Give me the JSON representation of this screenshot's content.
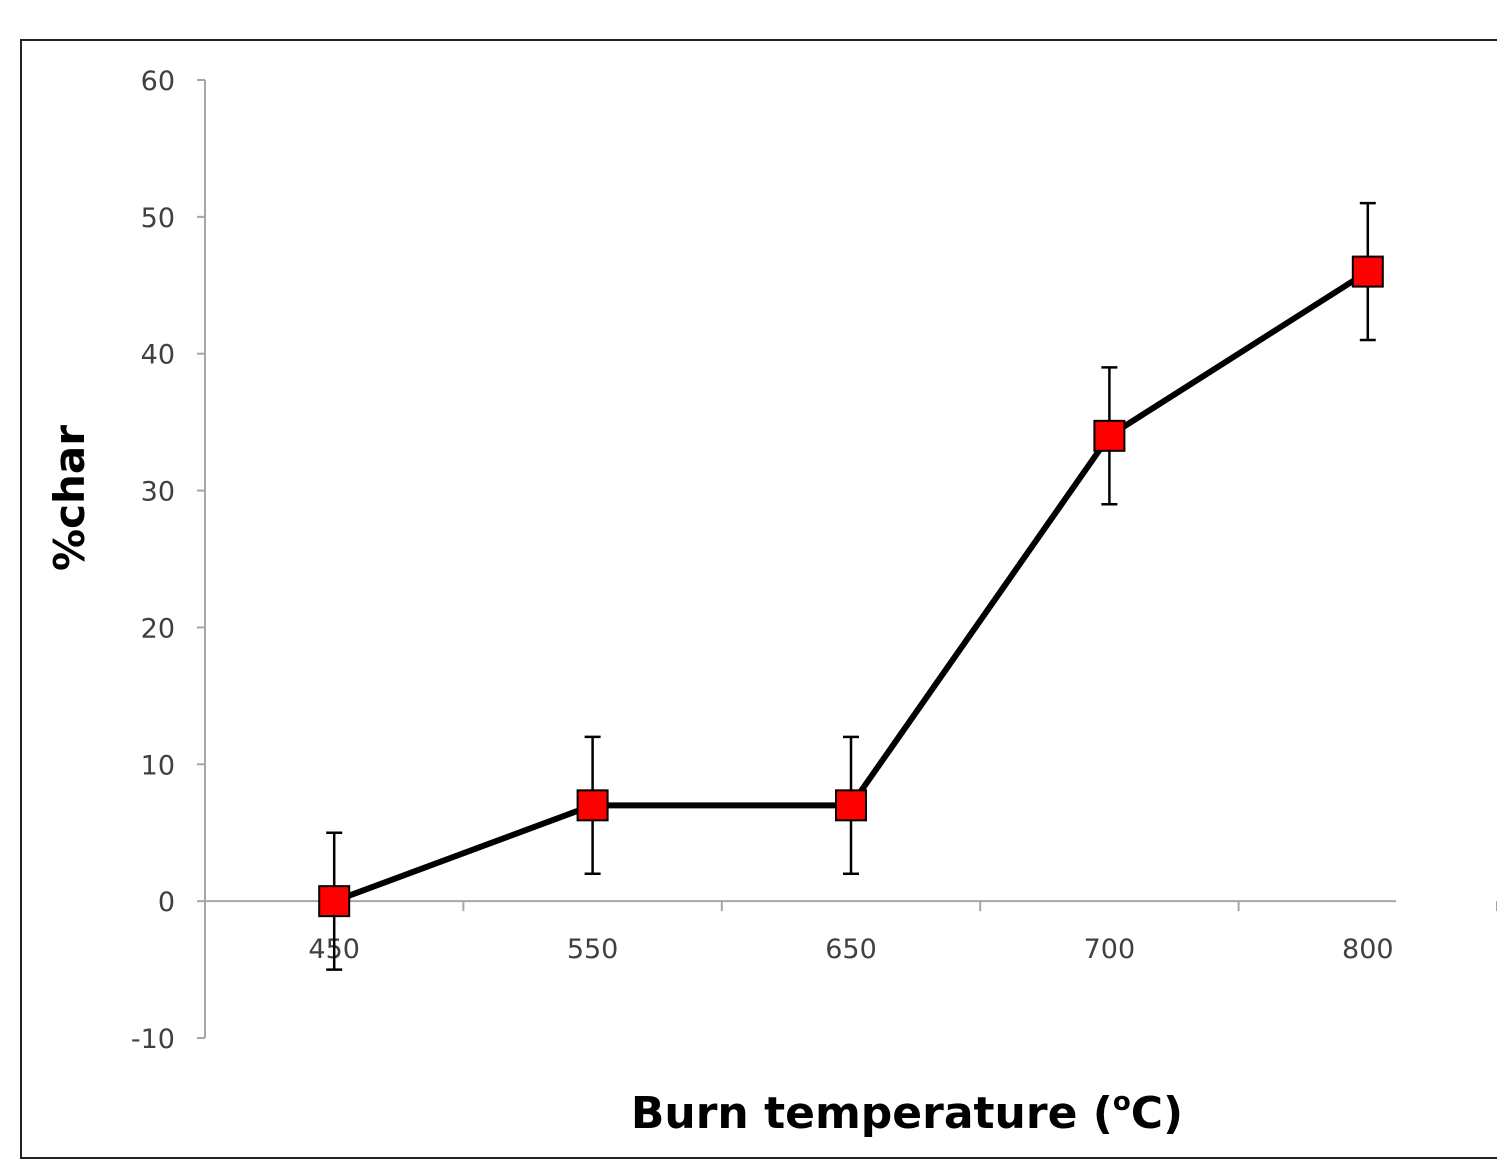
{
  "chart_data": {
    "type": "line",
    "title": "",
    "xlabel": "Burn temperature (",
    "xlabel_superscript": "o",
    "xlabel_suffix": "C)",
    "ylabel": "%char",
    "categories": [
      "450",
      "550",
      "650",
      "700",
      "800"
    ],
    "series": [
      {
        "values": [
          0,
          7,
          7,
          34,
          46
        ],
        "error": [
          5,
          5,
          5,
          5,
          5
        ],
        "color": "#000000",
        "marker": "square",
        "marker_color": "#ff0000"
      }
    ],
    "ylim": [
      -10,
      60
    ],
    "yticks": [
      -10,
      0,
      10,
      20,
      30,
      40,
      50,
      60
    ],
    "grid": false,
    "legend": "none"
  }
}
